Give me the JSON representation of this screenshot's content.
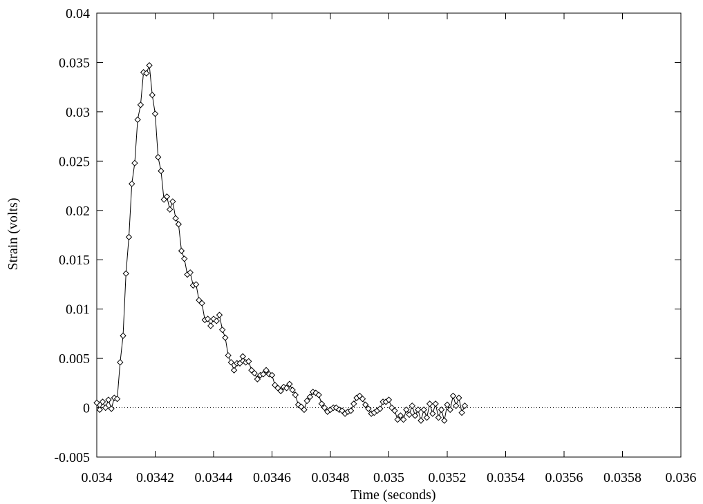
{
  "chart_data": {
    "type": "line",
    "title": "",
    "xlabel": "Time (seconds)",
    "ylabel": "Strain (volts)",
    "xlim": [
      0.034,
      0.036
    ],
    "ylim": [
      -0.005,
      0.04
    ],
    "xticks": [
      0.034,
      0.0342,
      0.0344,
      0.0346,
      0.0348,
      0.035,
      0.0352,
      0.0354,
      0.0356,
      0.0358,
      0.036
    ],
    "xtick_labels": [
      "0.034",
      "0.0342",
      "0.0344",
      "0.0346",
      "0.0348",
      "0.035",
      "0.0352",
      "0.0354",
      "0.0356",
      "0.0358",
      "0.036"
    ],
    "yticks": [
      -0.005,
      0,
      0.005,
      0.01,
      0.015,
      0.02,
      0.025,
      0.03,
      0.035,
      0.04
    ],
    "ytick_labels": [
      "-0.005",
      "0",
      "0.005",
      "0.01",
      "0.015",
      "0.02",
      "0.025",
      "0.03",
      "0.035",
      "0.04"
    ],
    "zero_line": true,
    "grid": false,
    "legend": "none",
    "marker": "diamond",
    "colors": {
      "line": "#000000",
      "zero_line": "#000000"
    },
    "series": [
      {
        "values": [
          [
            0.034,
            0.0005
          ],
          [
            0.03401,
            -0.0002
          ],
          [
            0.03402,
            0.0006
          ],
          [
            0.03403,
            0.0
          ],
          [
            0.03404,
            0.0008
          ],
          [
            0.03405,
            -0.0001
          ],
          [
            0.03406,
            0.001
          ],
          [
            0.03407,
            0.0009
          ],
          [
            0.03408,
            0.0046
          ],
          [
            0.03409,
            0.0073
          ],
          [
            0.0341,
            0.0136
          ],
          [
            0.03411,
            0.0173
          ],
          [
            0.03412,
            0.0227
          ],
          [
            0.03413,
            0.0248
          ],
          [
            0.03414,
            0.0292
          ],
          [
            0.03415,
            0.0307
          ],
          [
            0.03416,
            0.034
          ],
          [
            0.03417,
            0.0339
          ],
          [
            0.03418,
            0.0347
          ],
          [
            0.03419,
            0.0317
          ],
          [
            0.0342,
            0.0298
          ],
          [
            0.03421,
            0.0254
          ],
          [
            0.03422,
            0.024
          ],
          [
            0.03423,
            0.0211
          ],
          [
            0.03424,
            0.0214
          ],
          [
            0.03425,
            0.0201
          ],
          [
            0.03426,
            0.0209
          ],
          [
            0.03427,
            0.0192
          ],
          [
            0.03428,
            0.0186
          ],
          [
            0.03429,
            0.0159
          ],
          [
            0.0343,
            0.0151
          ],
          [
            0.03431,
            0.0135
          ],
          [
            0.03432,
            0.0137
          ],
          [
            0.03433,
            0.0124
          ],
          [
            0.03434,
            0.0125
          ],
          [
            0.03435,
            0.0109
          ],
          [
            0.03436,
            0.0106
          ],
          [
            0.03437,
            0.0089
          ],
          [
            0.03438,
            0.009
          ],
          [
            0.03439,
            0.0083
          ],
          [
            0.0344,
            0.009
          ],
          [
            0.03441,
            0.0088
          ],
          [
            0.03442,
            0.0094
          ],
          [
            0.03443,
            0.0079
          ],
          [
            0.03444,
            0.0071
          ],
          [
            0.03445,
            0.0053
          ],
          [
            0.03446,
            0.0046
          ],
          [
            0.03447,
            0.0038
          ],
          [
            0.03448,
            0.0045
          ],
          [
            0.03449,
            0.0045
          ],
          [
            0.0345,
            0.0052
          ],
          [
            0.03451,
            0.0046
          ],
          [
            0.03452,
            0.0047
          ],
          [
            0.03453,
            0.0038
          ],
          [
            0.03454,
            0.0035
          ],
          [
            0.03455,
            0.0029
          ],
          [
            0.03456,
            0.0033
          ],
          [
            0.03457,
            0.0034
          ],
          [
            0.03458,
            0.0038
          ],
          [
            0.03459,
            0.0034
          ],
          [
            0.0346,
            0.0033
          ],
          [
            0.03461,
            0.0023
          ],
          [
            0.03462,
            0.002
          ],
          [
            0.03463,
            0.0017
          ],
          [
            0.03464,
            0.0021
          ],
          [
            0.03465,
            0.002
          ],
          [
            0.03466,
            0.0024
          ],
          [
            0.03467,
            0.0018
          ],
          [
            0.03468,
            0.0013
          ],
          [
            0.03469,
            0.0003
          ],
          [
            0.0347,
            0.0001
          ],
          [
            0.03471,
            -0.0002
          ],
          [
            0.03472,
            0.0007
          ],
          [
            0.03473,
            0.0011
          ],
          [
            0.03474,
            0.0016
          ],
          [
            0.03475,
            0.0015
          ],
          [
            0.03476,
            0.0013
          ],
          [
            0.03477,
            0.0004
          ],
          [
            0.03478,
            0.0
          ],
          [
            0.03479,
            -0.0004
          ],
          [
            0.0348,
            -0.0002
          ],
          [
            0.03481,
            0.0
          ],
          [
            0.03482,
            0.0
          ],
          [
            0.03483,
            -0.0002
          ],
          [
            0.03484,
            -0.0003
          ],
          [
            0.03485,
            -0.0006
          ],
          [
            0.03486,
            -0.0004
          ],
          [
            0.03487,
            -0.0003
          ],
          [
            0.03488,
            0.0004
          ],
          [
            0.03489,
            0.001
          ],
          [
            0.0349,
            0.0012
          ],
          [
            0.03491,
            0.0009
          ],
          [
            0.03492,
            0.0003
          ],
          [
            0.03493,
            -0.0001
          ],
          [
            0.03494,
            -0.0006
          ],
          [
            0.03495,
            -0.0005
          ],
          [
            0.03496,
            -0.0003
          ],
          [
            0.03497,
            -0.0001
          ],
          [
            0.03498,
            0.0006
          ],
          [
            0.03499,
            0.0006
          ],
          [
            0.035,
            0.0008
          ],
          [
            0.03501,
            0.0
          ],
          [
            0.03502,
            -0.0003
          ],
          [
            0.03503,
            -0.0012
          ],
          [
            0.03504,
            -0.0008
          ],
          [
            0.03505,
            -0.0012
          ],
          [
            0.03506,
            -0.0002
          ],
          [
            0.03507,
            -0.0007
          ],
          [
            0.03508,
            0.0002
          ],
          [
            0.03509,
            -0.0008
          ],
          [
            0.0351,
            -0.0002
          ],
          [
            0.03511,
            -0.0013
          ],
          [
            0.03512,
            -0.0002
          ],
          [
            0.03513,
            -0.001
          ],
          [
            0.03514,
            0.0004
          ],
          [
            0.03515,
            -0.0006
          ],
          [
            0.03516,
            0.0004
          ],
          [
            0.03517,
            -0.001
          ],
          [
            0.03518,
            -0.0002
          ],
          [
            0.03519,
            -0.0013
          ],
          [
            0.0352,
            0.0003
          ],
          [
            0.03521,
            -0.0002
          ],
          [
            0.03522,
            0.0012
          ],
          [
            0.03523,
            0.0002
          ],
          [
            0.03524,
            0.001
          ],
          [
            0.03525,
            -0.0005
          ],
          [
            0.03526,
            0.0002
          ]
        ]
      }
    ]
  }
}
